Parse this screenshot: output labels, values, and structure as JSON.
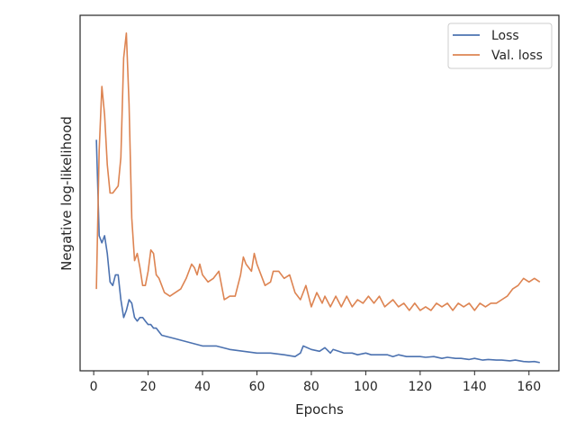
{
  "chart_data": {
    "type": "line",
    "xlabel": "Epochs",
    "ylabel": "Negative log-likelihood",
    "xlim": [
      -5,
      171
    ],
    "ylim": [
      0,
      100
    ],
    "xticks": [
      0,
      20,
      40,
      60,
      80,
      100,
      120,
      140,
      160
    ],
    "yticks_visible": false,
    "grid": false,
    "legend": "top-right",
    "series": [
      {
        "name": "Loss",
        "color": "#4c72b0",
        "points": [
          [
            1,
            65
          ],
          [
            2,
            38
          ],
          [
            3,
            36
          ],
          [
            4,
            38
          ],
          [
            5,
            33
          ],
          [
            6,
            25
          ],
          [
            7,
            24
          ],
          [
            8,
            27
          ],
          [
            9,
            27
          ],
          [
            10,
            20
          ],
          [
            11,
            15
          ],
          [
            12,
            17
          ],
          [
            13,
            20
          ],
          [
            14,
            19
          ],
          [
            15,
            15
          ],
          [
            16,
            14
          ],
          [
            17,
            15
          ],
          [
            18,
            15
          ],
          [
            19,
            14
          ],
          [
            20,
            13
          ],
          [
            21,
            13
          ],
          [
            22,
            12
          ],
          [
            23,
            12
          ],
          [
            24,
            11
          ],
          [
            25,
            10
          ],
          [
            30,
            9
          ],
          [
            35,
            8
          ],
          [
            40,
            7
          ],
          [
            45,
            7
          ],
          [
            50,
            6
          ],
          [
            55,
            5.5
          ],
          [
            60,
            5
          ],
          [
            65,
            5
          ],
          [
            70,
            4.5
          ],
          [
            74,
            4
          ],
          [
            76,
            5
          ],
          [
            77,
            7
          ],
          [
            80,
            6
          ],
          [
            83,
            5.5
          ],
          [
            85,
            6.5
          ],
          [
            87,
            5
          ],
          [
            88,
            6
          ],
          [
            90,
            5.5
          ],
          [
            92,
            5
          ],
          [
            95,
            5
          ],
          [
            97,
            4.5
          ],
          [
            100,
            5
          ],
          [
            102,
            4.5
          ],
          [
            105,
            4.5
          ],
          [
            108,
            4.5
          ],
          [
            110,
            4
          ],
          [
            112,
            4.5
          ],
          [
            115,
            4
          ],
          [
            118,
            4
          ],
          [
            120,
            4
          ],
          [
            122,
            3.8
          ],
          [
            125,
            4
          ],
          [
            128,
            3.5
          ],
          [
            130,
            3.8
          ],
          [
            133,
            3.5
          ],
          [
            135,
            3.5
          ],
          [
            138,
            3.2
          ],
          [
            140,
            3.5
          ],
          [
            143,
            3
          ],
          [
            145,
            3.2
          ],
          [
            148,
            3
          ],
          [
            150,
            3
          ],
          [
            153,
            2.8
          ],
          [
            155,
            3
          ],
          [
            158,
            2.6
          ],
          [
            160,
            2.5
          ],
          [
            162,
            2.6
          ],
          [
            164,
            2.3
          ]
        ]
      },
      {
        "name": "Val. loss",
        "color": "#dd8452",
        "points": [
          [
            1,
            23
          ],
          [
            2,
            62
          ],
          [
            3,
            80
          ],
          [
            4,
            72
          ],
          [
            5,
            58
          ],
          [
            6,
            50
          ],
          [
            7,
            50
          ],
          [
            8,
            51
          ],
          [
            9,
            52
          ],
          [
            10,
            60
          ],
          [
            11,
            88
          ],
          [
            12,
            95
          ],
          [
            13,
            75
          ],
          [
            14,
            43
          ],
          [
            15,
            31
          ],
          [
            16,
            33
          ],
          [
            17,
            29
          ],
          [
            18,
            24
          ],
          [
            19,
            24
          ],
          [
            20,
            28
          ],
          [
            21,
            34
          ],
          [
            22,
            33
          ],
          [
            23,
            27
          ],
          [
            24,
            26
          ],
          [
            25,
            24
          ],
          [
            26,
            22
          ],
          [
            28,
            21
          ],
          [
            30,
            22
          ],
          [
            32,
            23
          ],
          [
            34,
            26
          ],
          [
            36,
            30
          ],
          [
            37,
            29
          ],
          [
            38,
            27
          ],
          [
            39,
            30
          ],
          [
            40,
            27
          ],
          [
            42,
            25
          ],
          [
            44,
            26
          ],
          [
            46,
            28
          ],
          [
            48,
            20
          ],
          [
            50,
            21
          ],
          [
            52,
            21
          ],
          [
            54,
            27
          ],
          [
            55,
            32
          ],
          [
            56,
            30
          ],
          [
            58,
            28
          ],
          [
            59,
            33
          ],
          [
            60,
            30
          ],
          [
            62,
            26
          ],
          [
            63,
            24
          ],
          [
            65,
            25
          ],
          [
            66,
            28
          ],
          [
            68,
            28
          ],
          [
            70,
            26
          ],
          [
            72,
            27
          ],
          [
            74,
            22
          ],
          [
            76,
            20
          ],
          [
            78,
            24
          ],
          [
            80,
            18
          ],
          [
            82,
            22
          ],
          [
            84,
            19
          ],
          [
            85,
            21
          ],
          [
            87,
            18
          ],
          [
            89,
            21
          ],
          [
            91,
            18
          ],
          [
            93,
            21
          ],
          [
            95,
            18
          ],
          [
            97,
            20
          ],
          [
            99,
            19
          ],
          [
            101,
            21
          ],
          [
            103,
            19
          ],
          [
            105,
            21
          ],
          [
            107,
            18
          ],
          [
            110,
            20
          ],
          [
            112,
            18
          ],
          [
            114,
            19
          ],
          [
            116,
            17
          ],
          [
            118,
            19
          ],
          [
            120,
            17
          ],
          [
            122,
            18
          ],
          [
            124,
            17
          ],
          [
            126,
            19
          ],
          [
            128,
            18
          ],
          [
            130,
            19
          ],
          [
            132,
            17
          ],
          [
            134,
            19
          ],
          [
            136,
            18
          ],
          [
            138,
            19
          ],
          [
            140,
            17
          ],
          [
            142,
            19
          ],
          [
            144,
            18
          ],
          [
            146,
            19
          ],
          [
            148,
            19
          ],
          [
            150,
            20
          ],
          [
            152,
            21
          ],
          [
            154,
            23
          ],
          [
            156,
            24
          ],
          [
            158,
            26
          ],
          [
            160,
            25
          ],
          [
            162,
            26
          ],
          [
            164,
            25
          ]
        ]
      }
    ]
  }
}
